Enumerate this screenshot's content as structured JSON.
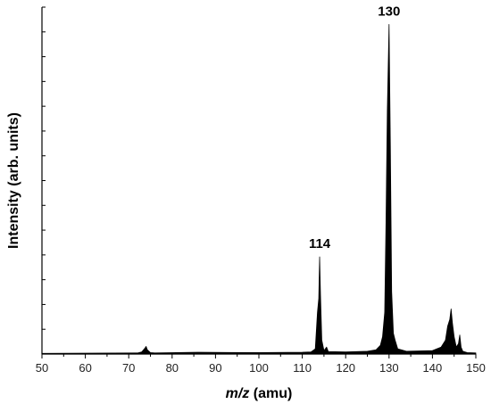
{
  "chart_data": {
    "type": "line",
    "title": "",
    "xlabel_italic": "m/z",
    "xlabel_rest": " (amu)",
    "ylabel": "Intensity (arb. units)",
    "xlim": [
      50,
      150
    ],
    "ylim": [
      0,
      1.0
    ],
    "x_ticks": [
      50,
      60,
      70,
      80,
      90,
      100,
      110,
      120,
      130,
      140,
      150
    ],
    "y_ticks_shown_labels": false,
    "grid": false,
    "series": [
      {
        "x": [
          50,
          72,
          73,
          73.8,
          74,
          74.3,
          75,
          76,
          86,
          100,
          110,
          112,
          113,
          113.5,
          113.8,
          114,
          114.2,
          114.5,
          115,
          115.6,
          116,
          120,
          125,
          127,
          128,
          128.5,
          129,
          129.3,
          129.6,
          130,
          130.3,
          130.6,
          131,
          131.4,
          132,
          134,
          140,
          142,
          143,
          143.5,
          144,
          144.3,
          144.6,
          145,
          145.5,
          146,
          146.3,
          146.6,
          147,
          148,
          150
        ],
        "y": [
          0.002,
          0.003,
          0.006,
          0.018,
          0.022,
          0.012,
          0.004,
          0.003,
          0.005,
          0.004,
          0.005,
          0.006,
          0.015,
          0.12,
          0.16,
          0.28,
          0.17,
          0.04,
          0.01,
          0.02,
          0.007,
          0.006,
          0.008,
          0.012,
          0.025,
          0.05,
          0.12,
          0.38,
          0.7,
          0.95,
          0.6,
          0.18,
          0.06,
          0.04,
          0.015,
          0.008,
          0.01,
          0.02,
          0.04,
          0.08,
          0.1,
          0.13,
          0.09,
          0.05,
          0.02,
          0.03,
          0.055,
          0.02,
          0.008,
          0.004,
          0.003
        ]
      }
    ],
    "peak_labels": [
      {
        "x": 114,
        "y": 0.28,
        "text": "114"
      },
      {
        "x": 130,
        "y": 0.95,
        "text": "130"
      }
    ]
  }
}
